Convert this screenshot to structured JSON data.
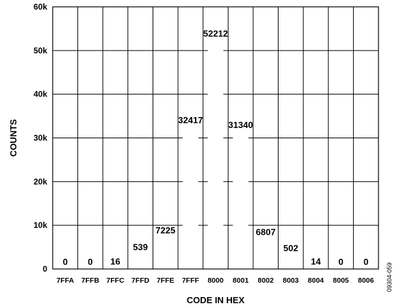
{
  "chart_data": {
    "type": "bar",
    "categories": [
      "7FFA",
      "7FFB",
      "7FFC",
      "7FFD",
      "7FFE",
      "7FFF",
      "8000",
      "8001",
      "8002",
      "8003",
      "8004",
      "8005",
      "8006"
    ],
    "values": [
      0,
      0,
      16,
      539,
      7225,
      32417,
      52212,
      31340,
      6807,
      502,
      14,
      0,
      0
    ],
    "data_labels": [
      "0",
      "0",
      "16",
      "539",
      "7225",
      "32417",
      "52212",
      "31340",
      "6807",
      "502",
      "14",
      "0",
      "0"
    ],
    "xlabel": "CODE IN HEX",
    "ylabel": "COUNTS",
    "ylim": [
      0,
      60000
    ],
    "yticks": [
      0,
      10000,
      20000,
      30000,
      40000,
      50000,
      60000
    ],
    "ytick_labels": [
      "0",
      "10k",
      "20k",
      "30k",
      "40k",
      "50k",
      "60k"
    ],
    "grid": true,
    "bar_color": "#ffffff",
    "line_color": "#000000"
  },
  "figure_id": "09304-059"
}
